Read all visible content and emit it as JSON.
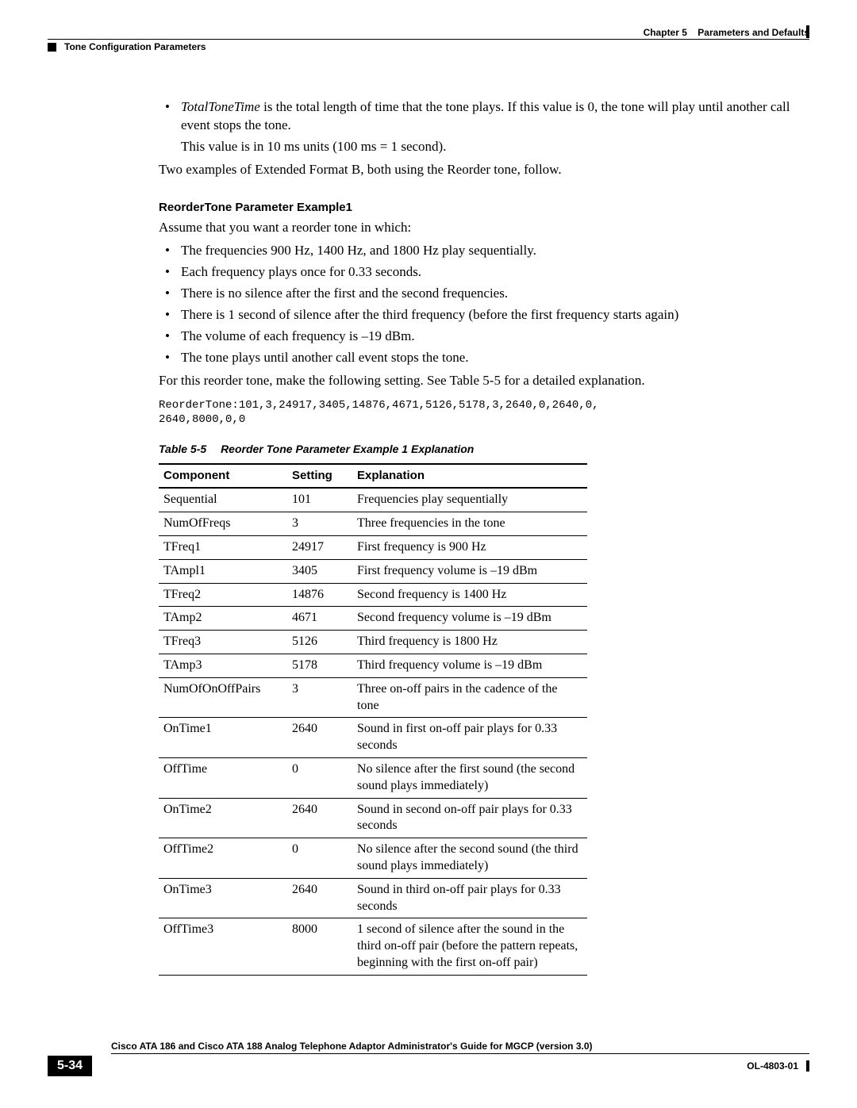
{
  "header": {
    "chapter_label": "Chapter 5",
    "chapter_title": "Parameters and Defaults",
    "section_title": "Tone Configuration Parameters"
  },
  "body": {
    "bullet_totaltone_term": "TotalToneTime",
    "bullet_totaltone_rest": " is the total length of time that the tone plays. If this value is 0, the tone will play until another call event stops the tone.",
    "bullet_totaltone_sub": "This value is in 10 ms units (100 ms = 1 second).",
    "para_two_examples": "Two examples of Extended Format B, both using the Reorder tone, follow.",
    "example1_heading": "ReorderTone Parameter Example1",
    "example1_intro": "Assume that you want a reorder tone in which:",
    "example1_bullets": [
      "The frequencies 900 Hz, 1400 Hz, and 1800 Hz play sequentially.",
      "Each frequency plays once for 0.33 seconds.",
      "There is no silence after the first and the second frequencies.",
      "There is 1 second of silence after the third frequency (before the first frequency starts again)",
      "The volume of each frequency is –19 dBm.",
      "The tone plays until another call event stops the tone."
    ],
    "example1_make_setting": "For this reorder tone, make the following setting. See Table 5-5 for a detailed explanation.",
    "example1_code": "ReorderTone:101,3,24917,3405,14876,4671,5126,5178,3,2640,0,2640,0,\n2640,8000,0,0",
    "table": {
      "label": "Table 5-5",
      "caption": "Reorder Tone Parameter Example 1 Explanation",
      "columns": [
        "Component",
        "Setting",
        "Explanation"
      ],
      "rows": [
        [
          "Sequential",
          "101",
          "Frequencies play sequentially"
        ],
        [
          "NumOfFreqs",
          "3",
          "Three frequencies in the tone"
        ],
        [
          "TFreq1",
          "24917",
          "First frequency is 900 Hz"
        ],
        [
          "TAmpl1",
          "3405",
          "First frequency volume is –19 dBm"
        ],
        [
          "TFreq2",
          "14876",
          "Second frequency is 1400 Hz"
        ],
        [
          "TAmp2",
          "4671",
          "Second frequency volume is –19 dBm"
        ],
        [
          "TFreq3",
          "5126",
          "Third frequency is 1800 Hz"
        ],
        [
          "TAmp3",
          "5178",
          "Third frequency volume is –19 dBm"
        ],
        [
          "NumOfOnOffPairs",
          "3",
          "Three on-off pairs in the cadence of the tone"
        ],
        [
          "OnTime1",
          "2640",
          "Sound in first on-off pair plays for 0.33 seconds"
        ],
        [
          "OffTime",
          "0",
          "No silence after the first sound (the second sound plays immediately)"
        ],
        [
          "OnTime2",
          "2640",
          "Sound in second on-off pair plays for 0.33 seconds"
        ],
        [
          "OffTime2",
          "0",
          "No silence after the second sound (the third sound plays immediately)"
        ],
        [
          "OnTime3",
          "2640",
          "Sound in third on-off pair plays for 0.33 seconds"
        ],
        [
          "OffTime3",
          "8000",
          "1 second of silence after the sound in the third on-off pair (before the pattern repeats, beginning with the first on-off pair)"
        ]
      ]
    }
  },
  "footer": {
    "doc_title": "Cisco ATA 186 and Cisco ATA 188 Analog Telephone Adaptor Administrator's Guide for MGCP (version 3.0)",
    "page_number": "5-34",
    "doc_code": "OL-4803-01"
  }
}
